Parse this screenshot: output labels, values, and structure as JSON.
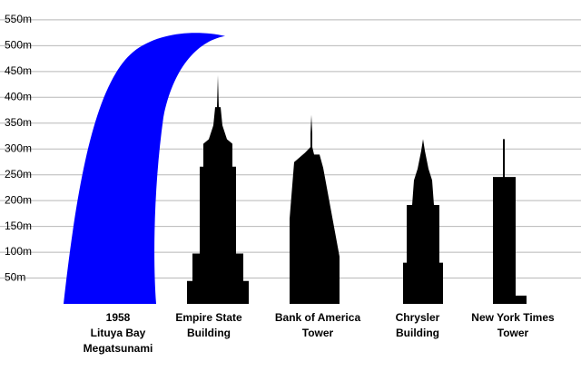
{
  "chart_data": {
    "type": "pictograph",
    "categories": [
      [
        "1958",
        "Lituya Bay",
        "Megatsunami"
      ],
      [
        "Empire State",
        "Building"
      ],
      [
        "Bank of America",
        "Tower"
      ],
      [
        "Chrysler",
        "Building"
      ],
      [
        "New York Times",
        "Tower"
      ]
    ],
    "values": [
      524,
      443,
      366,
      319,
      319
    ],
    "colors": [
      "#0000ff",
      "#000000",
      "#000000",
      "#000000",
      "#000000"
    ],
    "ylim": [
      0,
      585
    ],
    "yticks": [
      {
        "value": 50,
        "label": "50m"
      },
      {
        "value": 100,
        "label": "100m"
      },
      {
        "value": 150,
        "label": "150m"
      },
      {
        "value": 200,
        "label": "200m"
      },
      {
        "value": 250,
        "label": "250m"
      },
      {
        "value": 300,
        "label": "300m"
      },
      {
        "value": 350,
        "label": "350m"
      },
      {
        "value": 400,
        "label": "400m"
      },
      {
        "value": 450,
        "label": "450m"
      },
      {
        "value": 500,
        "label": "500m"
      },
      {
        "value": 550,
        "label": "550m"
      }
    ],
    "grid": true
  }
}
